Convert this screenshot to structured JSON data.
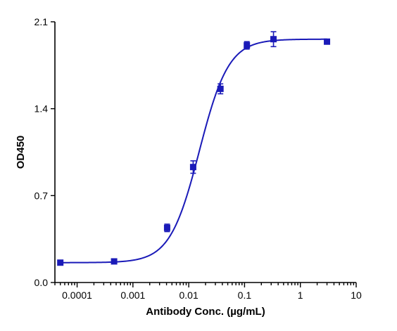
{
  "chart_data": {
    "type": "scatter",
    "xlabel": "Antibody Conc. (µg/mL)",
    "ylabel": "OD450",
    "x_scale": "log",
    "xlim": [
      4e-05,
      10
    ],
    "ylim": [
      0,
      2.1
    ],
    "x_ticks": [
      0.0001,
      0.001,
      0.01,
      0.1,
      1,
      10
    ],
    "x_tick_labels": [
      "0.0001",
      "0.001",
      "0.01",
      "0.1",
      "1",
      "10"
    ],
    "y_ticks": [
      0.0,
      0.7,
      1.4,
      2.1
    ],
    "y_tick_labels": [
      "0.0",
      "0.7",
      "1.4",
      "2.1"
    ],
    "grid": false,
    "color": "#1a1ab8",
    "series": [
      {
        "points": [
          {
            "x": 5e-05,
            "y": 0.16,
            "err": 0.0
          },
          {
            "x": 0.00046,
            "y": 0.17,
            "err": 0.0
          },
          {
            "x": 0.0041,
            "y": 0.44,
            "err": 0.03
          },
          {
            "x": 0.012,
            "y": 0.93,
            "err": 0.05
          },
          {
            "x": 0.037,
            "y": 1.56,
            "err": 0.04
          },
          {
            "x": 0.11,
            "y": 1.91,
            "err": 0.03
          },
          {
            "x": 0.33,
            "y": 1.96,
            "err": 0.06
          },
          {
            "x": 3.0,
            "y": 1.94,
            "err": 0.0
          }
        ],
        "fit": {
          "model": "4PL",
          "bottom": 0.16,
          "top": 1.96,
          "ec50": 0.0155,
          "hill": 1.65
        }
      }
    ]
  }
}
